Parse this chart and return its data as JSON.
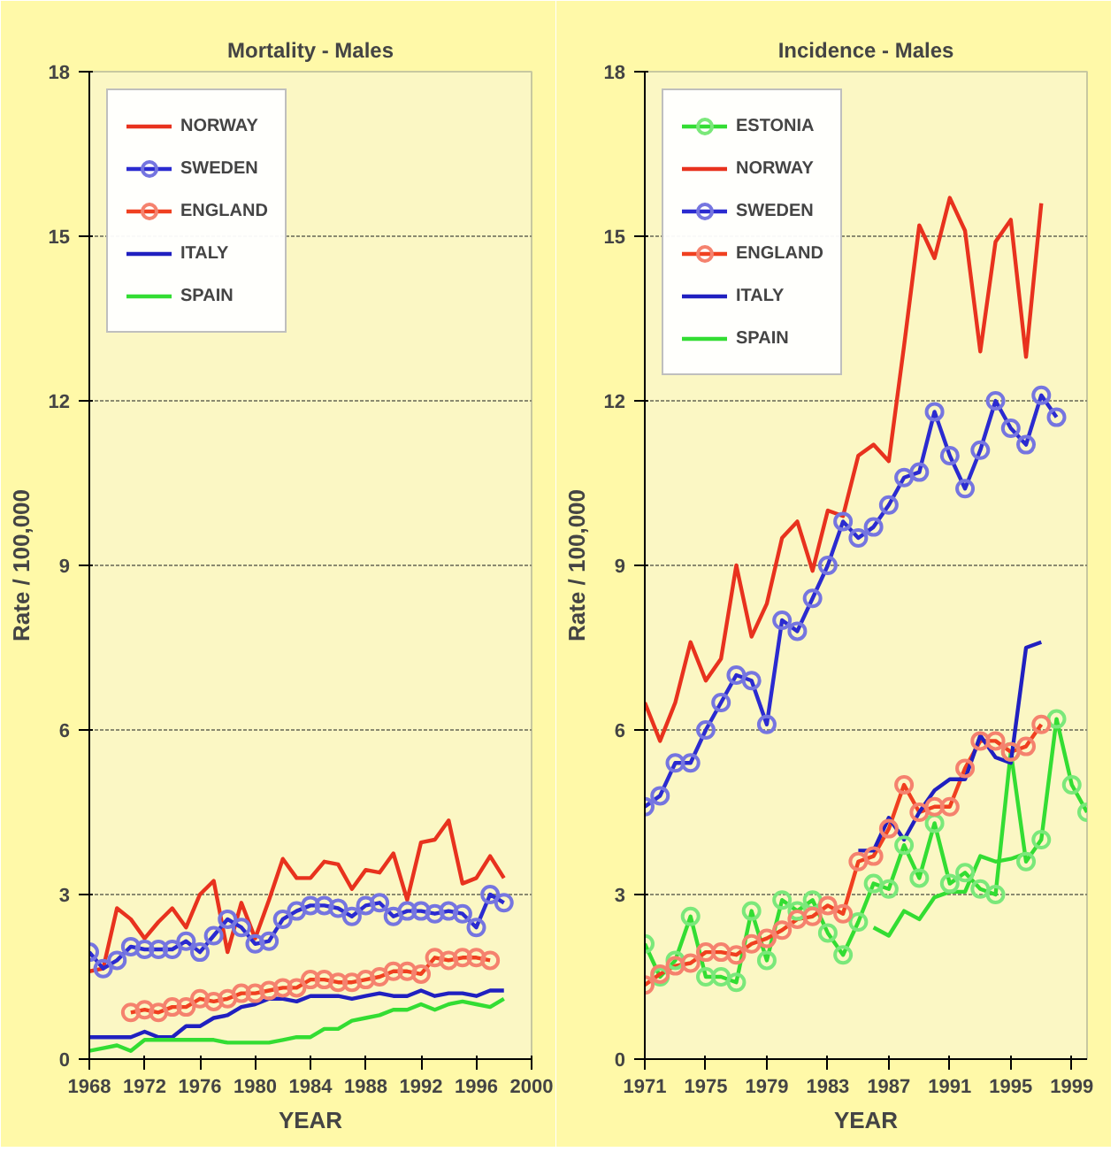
{
  "chart_data": [
    {
      "type": "line",
      "title": "Mortality - Males",
      "xlabel": "YEAR",
      "ylabel": "Rate / 100,000",
      "xlim": [
        1968,
        2000
      ],
      "xticks": [
        1968,
        1972,
        1976,
        1980,
        1984,
        1988,
        1992,
        1996,
        2000
      ],
      "ylim": [
        0,
        18
      ],
      "yticks": [
        0,
        3,
        6,
        9,
        12,
        15,
        18
      ],
      "grid": "y",
      "legend": "top left",
      "line_style": "solid",
      "series": [
        {
          "name": "NORWAY",
          "color": "#e8321e",
          "marker": "none",
          "x": [
            1968,
            1969,
            1970,
            1971,
            1972,
            1973,
            1974,
            1975,
            1976,
            1977,
            1978,
            1979,
            1980,
            1981,
            1982,
            1983,
            1984,
            1985,
            1986,
            1987,
            1988,
            1989,
            1990,
            1991,
            1992,
            1993,
            1994,
            1995,
            1996,
            1997,
            1998
          ],
          "values": [
            1.6,
            1.65,
            2.75,
            2.55,
            2.2,
            2.5,
            2.75,
            2.4,
            3.0,
            3.25,
            1.95,
            2.85,
            2.2,
            2.9,
            3.65,
            3.3,
            3.3,
            3.6,
            3.55,
            3.1,
            3.45,
            3.4,
            3.75,
            2.9,
            3.95,
            4.0,
            4.35,
            3.2,
            3.3,
            3.7,
            3.3
          ]
        },
        {
          "name": "SWEDEN",
          "color": "#2b2bd0",
          "marker": "circle",
          "x": [
            1968,
            1969,
            1970,
            1971,
            1972,
            1973,
            1974,
            1975,
            1976,
            1977,
            1978,
            1979,
            1980,
            1981,
            1982,
            1983,
            1984,
            1985,
            1986,
            1987,
            1988,
            1989,
            1990,
            1991,
            1992,
            1993,
            1994,
            1995,
            1996,
            1997,
            1998
          ],
          "values": [
            1.95,
            1.65,
            1.8,
            2.05,
            2.0,
            2.0,
            2.0,
            2.15,
            1.95,
            2.25,
            2.55,
            2.4,
            2.1,
            2.15,
            2.55,
            2.7,
            2.8,
            2.8,
            2.75,
            2.6,
            2.8,
            2.85,
            2.6,
            2.7,
            2.7,
            2.65,
            2.7,
            2.65,
            2.4,
            3.0,
            2.85
          ]
        },
        {
          "name": "ENGLAND",
          "color": "#f04020",
          "marker": "circle",
          "x": [
            1971,
            1972,
            1973,
            1974,
            1975,
            1976,
            1977,
            1978,
            1979,
            1980,
            1981,
            1982,
            1983,
            1984,
            1985,
            1986,
            1987,
            1988,
            1989,
            1990,
            1991,
            1992,
            1993,
            1994,
            1995,
            1996,
            1997
          ],
          "values": [
            0.85,
            0.9,
            0.85,
            0.95,
            0.95,
            1.1,
            1.05,
            1.1,
            1.2,
            1.2,
            1.25,
            1.3,
            1.3,
            1.45,
            1.45,
            1.4,
            1.4,
            1.45,
            1.5,
            1.6,
            1.6,
            1.55,
            1.85,
            1.8,
            1.85,
            1.85,
            1.8
          ]
        },
        {
          "name": "ITALY",
          "color": "#2020c0",
          "marker": "none",
          "x": [
            1968,
            1969,
            1970,
            1971,
            1972,
            1973,
            1974,
            1975,
            1976,
            1977,
            1978,
            1979,
            1980,
            1981,
            1982,
            1983,
            1984,
            1985,
            1986,
            1987,
            1988,
            1989,
            1990,
            1991,
            1992,
            1993,
            1994,
            1995,
            1996,
            1997,
            1998
          ],
          "values": [
            0.4,
            0.4,
            0.4,
            0.4,
            0.5,
            0.4,
            0.4,
            0.6,
            0.6,
            0.75,
            0.8,
            0.95,
            1.0,
            1.1,
            1.1,
            1.05,
            1.15,
            1.15,
            1.15,
            1.1,
            1.15,
            1.2,
            1.15,
            1.15,
            1.25,
            1.15,
            1.2,
            1.2,
            1.15,
            1.25,
            1.25
          ]
        },
        {
          "name": "SPAIN",
          "color": "#33dd33",
          "marker": "none",
          "x": [
            1968,
            1969,
            1970,
            1971,
            1972,
            1973,
            1974,
            1975,
            1976,
            1977,
            1978,
            1979,
            1980,
            1981,
            1982,
            1983,
            1984,
            1985,
            1986,
            1987,
            1988,
            1989,
            1990,
            1991,
            1992,
            1993,
            1994,
            1995,
            1996,
            1997,
            1998
          ],
          "values": [
            0.15,
            0.2,
            0.25,
            0.15,
            0.35,
            0.35,
            0.35,
            0.35,
            0.35,
            0.35,
            0.3,
            0.3,
            0.3,
            0.3,
            0.35,
            0.4,
            0.4,
            0.55,
            0.55,
            0.7,
            0.75,
            0.8,
            0.9,
            0.9,
            1.0,
            0.9,
            1.0,
            1.05,
            1.0,
            0.95,
            1.1
          ]
        }
      ]
    },
    {
      "type": "line",
      "title": "Incidence - Males",
      "xlabel": "YEAR",
      "ylabel": "Rate / 100,000",
      "xlim": [
        1971,
        2000
      ],
      "xticks": [
        1971,
        1975,
        1979,
        1983,
        1987,
        1991,
        1995,
        1999
      ],
      "ylim": [
        0,
        18
      ],
      "yticks": [
        0,
        3,
        6,
        9,
        12,
        15,
        18
      ],
      "grid": "y",
      "legend": "top left",
      "line_style": "solid",
      "series": [
        {
          "name": "ESTONIA",
          "color": "#33dd33",
          "marker": "circle",
          "x": [
            1971,
            1972,
            1973,
            1974,
            1975,
            1976,
            1977,
            1978,
            1979,
            1980,
            1981,
            1982,
            1983,
            1984,
            1985,
            1986,
            1987,
            1988,
            1989,
            1990,
            1991,
            1992,
            1993,
            1994,
            1995,
            1996,
            1997,
            1998,
            1999,
            2000
          ],
          "values": [
            2.1,
            1.5,
            1.8,
            2.6,
            1.5,
            1.5,
            1.4,
            2.7,
            1.8,
            2.9,
            2.7,
            2.9,
            2.3,
            1.9,
            2.5,
            3.2,
            3.1,
            3.9,
            3.3,
            4.3,
            3.2,
            3.4,
            3.1,
            3.0,
            5.6,
            3.6,
            4.0,
            6.2,
            5.0,
            4.5
          ]
        },
        {
          "name": "NORWAY",
          "color": "#e8321e",
          "marker": "none",
          "x": [
            1971,
            1972,
            1973,
            1974,
            1975,
            1976,
            1977,
            1978,
            1979,
            1980,
            1981,
            1982,
            1983,
            1984,
            1985,
            1986,
            1987,
            1988,
            1989,
            1990,
            1991,
            1992,
            1993,
            1994,
            1995,
            1996,
            1997
          ],
          "values": [
            6.5,
            5.8,
            6.5,
            7.6,
            6.9,
            7.3,
            9.0,
            7.7,
            8.3,
            9.5,
            9.8,
            8.9,
            10.0,
            9.9,
            11.0,
            11.2,
            10.9,
            13.0,
            15.2,
            14.6,
            15.7,
            15.1,
            12.9,
            14.9,
            15.3,
            12.8,
            15.6
          ]
        },
        {
          "name": "SWEDEN",
          "color": "#2b2bd0",
          "marker": "circle",
          "x": [
            1971,
            1972,
            1973,
            1974,
            1975,
            1976,
            1977,
            1978,
            1979,
            1980,
            1981,
            1982,
            1983,
            1984,
            1985,
            1986,
            1987,
            1988,
            1989,
            1990,
            1991,
            1992,
            1993,
            1994,
            1995,
            1996,
            1997,
            1998
          ],
          "values": [
            4.6,
            4.8,
            5.4,
            5.4,
            6.0,
            6.5,
            7.0,
            6.9,
            6.1,
            8.0,
            7.8,
            8.4,
            9.0,
            9.8,
            9.5,
            9.7,
            10.1,
            10.6,
            10.7,
            11.8,
            11.0,
            10.4,
            11.1,
            12.0,
            11.5,
            11.2,
            12.1,
            11.7
          ]
        },
        {
          "name": "ENGLAND",
          "color": "#f04020",
          "marker": "circle",
          "x": [
            1971,
            1972,
            1973,
            1974,
            1975,
            1976,
            1977,
            1978,
            1979,
            1980,
            1981,
            1982,
            1983,
            1984,
            1985,
            1986,
            1987,
            1988,
            1989,
            1990,
            1991,
            1992,
            1993,
            1994,
            1995,
            1996,
            1997
          ],
          "values": [
            1.35,
            1.55,
            1.7,
            1.75,
            1.95,
            1.95,
            1.9,
            2.1,
            2.2,
            2.35,
            2.55,
            2.6,
            2.8,
            2.65,
            3.6,
            3.7,
            4.2,
            5.0,
            4.5,
            4.6,
            4.6,
            5.3,
            5.8,
            5.8,
            5.6,
            5.7,
            6.1
          ]
        },
        {
          "name": "ITALY",
          "color": "#2020c0",
          "marker": "none",
          "x": [
            1985,
            1986,
            1987,
            1988,
            1989,
            1990,
            1991,
            1992,
            1993,
            1994,
            1995,
            1996,
            1997
          ],
          "values": [
            3.8,
            3.8,
            4.4,
            4.0,
            4.5,
            4.9,
            5.1,
            5.1,
            5.9,
            5.5,
            5.4,
            7.5,
            7.6
          ]
        },
        {
          "name": "SPAIN",
          "color": "#33dd33",
          "marker": "none",
          "x": [
            1986,
            1987,
            1988,
            1989,
            1990,
            1991,
            1992,
            1993,
            1994,
            1995,
            1996
          ],
          "values": [
            2.4,
            2.25,
            2.7,
            2.55,
            2.95,
            3.05,
            3.05,
            3.7,
            3.6,
            3.65,
            3.75
          ]
        }
      ]
    }
  ]
}
